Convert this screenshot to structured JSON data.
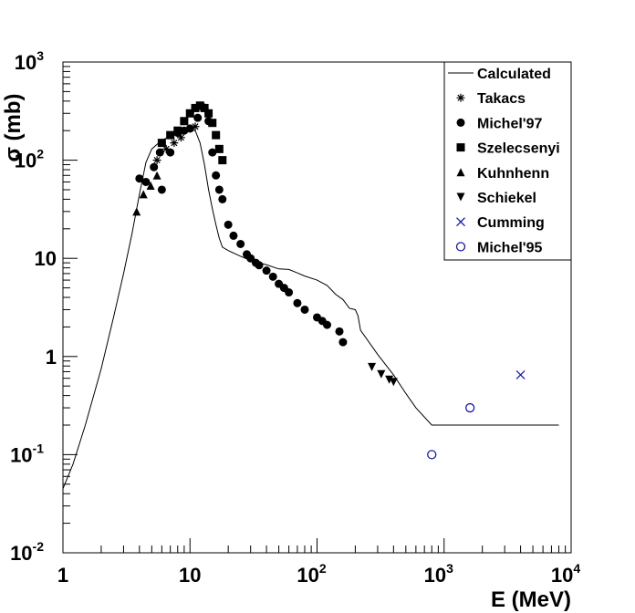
{
  "chart_data": {
    "type": "scatter",
    "xscale": "log",
    "yscale": "log",
    "xlim": [
      1,
      10000
    ],
    "ylim": [
      0.01,
      1000
    ],
    "xlabel": "E (MeV)",
    "ylabel": "σ (mb)",
    "x_ticks": [
      {
        "value": 1,
        "base": "1",
        "exp": ""
      },
      {
        "value": 10,
        "base": "10",
        "exp": ""
      },
      {
        "value": 100,
        "base": "10",
        "exp": "2"
      },
      {
        "value": 1000,
        "base": "10",
        "exp": "3"
      },
      {
        "value": 10000,
        "base": "10",
        "exp": "4"
      }
    ],
    "y_ticks": [
      {
        "value": 0.01,
        "base": "10",
        "exp": "-2"
      },
      {
        "value": 0.1,
        "base": "10",
        "exp": "-1"
      },
      {
        "value": 1,
        "base": "1",
        "exp": ""
      },
      {
        "value": 10,
        "base": "10",
        "exp": ""
      },
      {
        "value": 100,
        "base": "10",
        "exp": "2"
      },
      {
        "value": 1000,
        "base": "10",
        "exp": "3"
      }
    ],
    "legend_position": "top-right",
    "legend": [
      {
        "label": "Calculated",
        "marker": "line",
        "color": "#000000"
      },
      {
        "label": "Takacs",
        "marker": "asterisk",
        "color": "#000000"
      },
      {
        "label": "Michel'97",
        "marker": "circle",
        "color": "#000000"
      },
      {
        "label": "Szelecsenyi",
        "marker": "square",
        "color": "#000000"
      },
      {
        "label": "Kuhnhenn",
        "marker": "triangle-up",
        "color": "#000000"
      },
      {
        "label": "Schiekel",
        "marker": "triangle-down",
        "color": "#000000"
      },
      {
        "label": "Cumming",
        "marker": "cross",
        "color": "#1a1aa0"
      },
      {
        "label": "Michel'95",
        "marker": "open-circle",
        "color": "#1a1aa0"
      }
    ],
    "series": [
      {
        "name": "Calculated",
        "kind": "line",
        "points": [
          [
            1,
            0.045
          ],
          [
            1.2,
            0.08
          ],
          [
            1.5,
            0.2
          ],
          [
            2,
            0.75
          ],
          [
            2.5,
            2.5
          ],
          [
            3,
            7
          ],
          [
            3.5,
            18
          ],
          [
            4,
            45
          ],
          [
            4.5,
            95
          ],
          [
            5,
            130
          ],
          [
            6,
            160
          ],
          [
            7,
            175
          ],
          [
            8,
            185
          ],
          [
            9,
            195
          ],
          [
            10,
            205
          ],
          [
            11,
            200
          ],
          [
            12,
            150
          ],
          [
            13,
            90
          ],
          [
            14,
            50
          ],
          [
            15,
            32
          ],
          [
            16,
            22
          ],
          [
            17,
            16
          ],
          [
            18,
            13
          ],
          [
            20,
            12
          ],
          [
            25,
            10.5
          ],
          [
            30,
            9.5
          ],
          [
            40,
            8.6
          ],
          [
            50,
            7.8
          ],
          [
            60,
            7.7
          ],
          [
            70,
            7.1
          ],
          [
            80,
            6.6
          ],
          [
            100,
            6.0
          ],
          [
            120,
            5.3
          ],
          [
            140,
            4.3
          ],
          [
            160,
            3.8
          ],
          [
            180,
            3.1
          ],
          [
            200,
            3.0
          ],
          [
            210,
            2.6
          ],
          [
            220,
            1.85
          ],
          [
            300,
            1.05
          ],
          [
            400,
            0.65
          ],
          [
            500,
            0.42
          ],
          [
            600,
            0.3
          ],
          [
            800,
            0.2
          ],
          [
            1000,
            0.2
          ],
          [
            2000,
            0.2
          ],
          [
            5000,
            0.2
          ],
          [
            8000,
            0.2
          ]
        ]
      },
      {
        "name": "Takacs",
        "kind": "marker",
        "points": [
          [
            5.5,
            100
          ],
          [
            6.5,
            130
          ],
          [
            7.5,
            150
          ],
          [
            8.5,
            170
          ],
          [
            11,
            220
          ]
        ]
      },
      {
        "name": "Michel'97",
        "kind": "marker",
        "points": [
          [
            4,
            65
          ],
          [
            4.5,
            60
          ],
          [
            5.2,
            85
          ],
          [
            5.8,
            120
          ],
          [
            6,
            50
          ],
          [
            7,
            120
          ],
          [
            8,
            190
          ],
          [
            9,
            200
          ],
          [
            10,
            210
          ],
          [
            11.5,
            270
          ],
          [
            12.5,
            350
          ],
          [
            14,
            250
          ],
          [
            15,
            120
          ],
          [
            16,
            70
          ],
          [
            17,
            50
          ],
          [
            18,
            40
          ],
          [
            20,
            22
          ],
          [
            22,
            17
          ],
          [
            25,
            14
          ],
          [
            28,
            11
          ],
          [
            30,
            10
          ],
          [
            33,
            9
          ],
          [
            35,
            8.5
          ],
          [
            40,
            7.5
          ],
          [
            45,
            6.5
          ],
          [
            50,
            5.5
          ],
          [
            55,
            5
          ],
          [
            60,
            4.5
          ],
          [
            70,
            3.5
          ],
          [
            80,
            3
          ],
          [
            100,
            2.5
          ],
          [
            110,
            2.3
          ],
          [
            120,
            2.1
          ],
          [
            150,
            1.8
          ],
          [
            160,
            1.4
          ]
        ]
      },
      {
        "name": "Szelecsenyi",
        "kind": "marker",
        "points": [
          [
            6,
            150
          ],
          [
            7,
            180
          ],
          [
            8,
            200
          ],
          [
            9,
            250
          ],
          [
            10,
            300
          ],
          [
            11,
            340
          ],
          [
            12,
            360
          ],
          [
            13,
            340
          ],
          [
            14,
            300
          ],
          [
            15,
            240
          ],
          [
            16,
            180
          ],
          [
            17,
            130
          ],
          [
            18,
            100
          ]
        ]
      },
      {
        "name": "Kuhnhenn",
        "kind": "marker",
        "points": [
          [
            3.8,
            30
          ],
          [
            4.3,
            45
          ],
          [
            4.9,
            55
          ],
          [
            5.5,
            70
          ]
        ]
      },
      {
        "name": "Schiekel",
        "kind": "marker",
        "points": [
          [
            270,
            0.78
          ],
          [
            320,
            0.66
          ],
          [
            370,
            0.58
          ],
          [
            400,
            0.55
          ]
        ]
      },
      {
        "name": "Cumming",
        "kind": "marker",
        "points": [
          [
            4000,
            0.65
          ]
        ]
      },
      {
        "name": "Michel'95",
        "kind": "marker",
        "points": [
          [
            800,
            0.1
          ],
          [
            1600,
            0.3
          ]
        ]
      }
    ]
  }
}
